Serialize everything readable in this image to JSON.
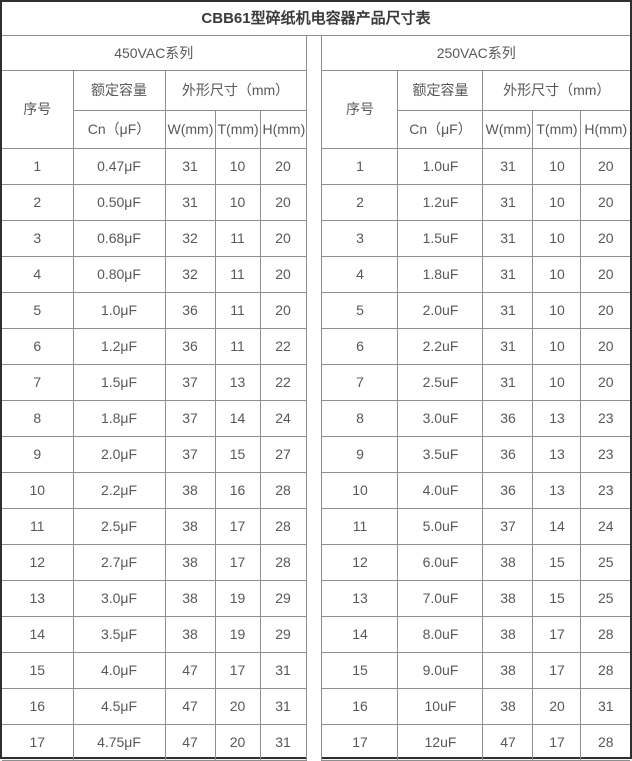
{
  "title": "CBB61型碎纸机电容器产品尺寸表",
  "tables": [
    {
      "section": "450VAC系列",
      "headers": {
        "serial": "序号",
        "capacity_group": "额定容量",
        "dimensions_group": "外形尺寸（mm）",
        "cn": "Cn（μF）",
        "w": "W(mm)",
        "t": "T(mm)",
        "h": "H(mm)"
      },
      "rows": [
        [
          "1",
          "0.47μF",
          "31",
          "10",
          "20"
        ],
        [
          "2",
          "0.50μF",
          "31",
          "10",
          "20"
        ],
        [
          "3",
          "0.68μF",
          "32",
          "11",
          "20"
        ],
        [
          "4",
          "0.80μF",
          "32",
          "11",
          "20"
        ],
        [
          "5",
          "1.0μF",
          "36",
          "11",
          "20"
        ],
        [
          "6",
          "1.2μF",
          "36",
          "11",
          "22"
        ],
        [
          "7",
          "1.5μF",
          "37",
          "13",
          "22"
        ],
        [
          "8",
          "1.8μF",
          "37",
          "14",
          "24"
        ],
        [
          "9",
          "2.0μF",
          "37",
          "15",
          "27"
        ],
        [
          "10",
          "2.2μF",
          "38",
          "16",
          "28"
        ],
        [
          "11",
          "2.5μF",
          "38",
          "17",
          "28"
        ],
        [
          "12",
          "2.7μF",
          "38",
          "17",
          "28"
        ],
        [
          "13",
          "3.0μF",
          "38",
          "19",
          "29"
        ],
        [
          "14",
          "3.5μF",
          "38",
          "19",
          "29"
        ],
        [
          "15",
          "4.0μF",
          "47",
          "17",
          "31"
        ],
        [
          "16",
          "4.5μF",
          "47",
          "20",
          "31"
        ],
        [
          "17",
          "4.75μF",
          "47",
          "20",
          "31"
        ]
      ]
    },
    {
      "section": "250VAC系列",
      "headers": {
        "serial": "序号",
        "capacity_group": "额定容量",
        "dimensions_group": "外形尺寸（mm）",
        "cn": "Cn（μF）",
        "w": "W(mm)",
        "t": "T(mm)",
        "h": "H(mm)"
      },
      "rows": [
        [
          "1",
          "1.0uF",
          "31",
          "10",
          "20"
        ],
        [
          "2",
          "1.2uF",
          "31",
          "10",
          "20"
        ],
        [
          "3",
          "1.5uF",
          "31",
          "10",
          "20"
        ],
        [
          "4",
          "1.8uF",
          "31",
          "10",
          "20"
        ],
        [
          "5",
          "2.0uF",
          "31",
          "10",
          "20"
        ],
        [
          "6",
          "2.2uF",
          "31",
          "10",
          "20"
        ],
        [
          "7",
          "2.5uF",
          "31",
          "10",
          "20"
        ],
        [
          "8",
          "3.0uF",
          "36",
          "13",
          "23"
        ],
        [
          "9",
          "3.5uF",
          "36",
          "13",
          "23"
        ],
        [
          "10",
          "4.0uF",
          "36",
          "13",
          "23"
        ],
        [
          "11",
          "5.0uF",
          "37",
          "14",
          "24"
        ],
        [
          "12",
          "6.0uF",
          "38",
          "15",
          "25"
        ],
        [
          "13",
          "7.0uF",
          "38",
          "15",
          "25"
        ],
        [
          "14",
          "8.0uF",
          "38",
          "17",
          "28"
        ],
        [
          "15",
          "9.0uF",
          "38",
          "17",
          "28"
        ],
        [
          "16",
          "10uF",
          "38",
          "20",
          "31"
        ],
        [
          "17",
          "12uF",
          "47",
          "17",
          "28"
        ]
      ]
    }
  ]
}
